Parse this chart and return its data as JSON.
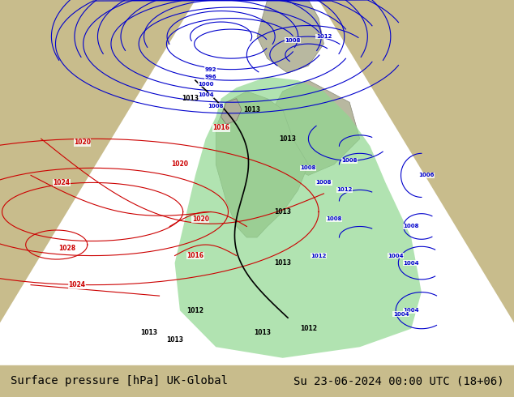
{
  "title_left": "Surface pressure [hPa] UK-Global",
  "title_right": "Su 23-06-2024 00:00 UTC (18+06)",
  "bg_map_color": "#c8bc8c",
  "land_color": "#c8bc8c",
  "sea_color": "#a0b0c0",
  "cone_color": "#f0f0f0",
  "green_area_color": "#90d890",
  "white_area_color": "#ffffff",
  "bottom_bar_color": "#d0d0d0",
  "title_fontsize": 10,
  "fig_width": 6.34,
  "fig_height": 4.9,
  "dpi": 100
}
